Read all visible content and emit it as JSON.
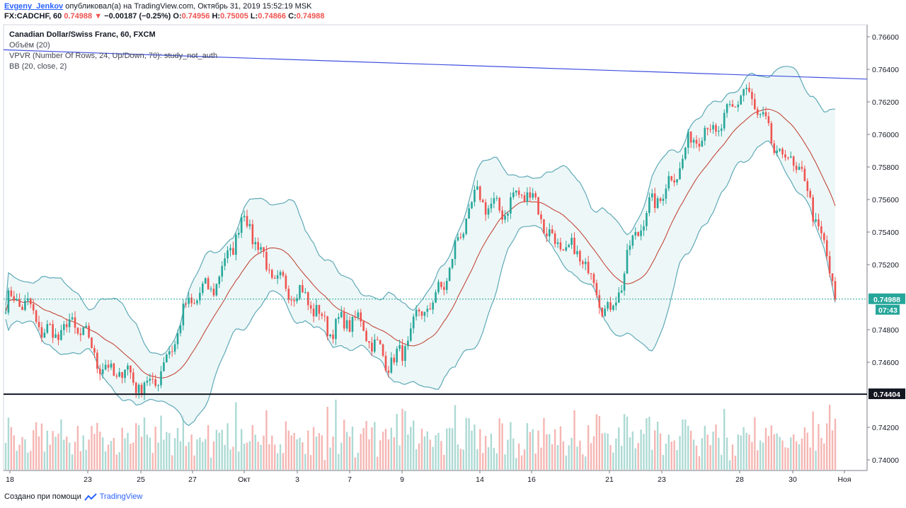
{
  "header": {
    "author": "Evgeny_Jenkov",
    "published_text": "опубликовал(а) на TradingView.com, Октябрь 31, 2019 15:52:19 MSK",
    "symbol_line_label": "FX:CADCHF, 60",
    "last": "0.74988",
    "change": "−0.00187 (−0.25%)",
    "ohlc": {
      "o_label": "O:",
      "o": "0.74956",
      "h_label": "H:",
      "h": "0.75005",
      "l_label": "L:",
      "l": "0.74866",
      "c_label": "C:",
      "c": "0.74988"
    }
  },
  "legend": {
    "title": "Canadian Dollar/Swiss Franc, 60, FXCM",
    "volume": "Объём (20)",
    "vpvr": "VPVR (Number Of Rows, 24, Up/Down, 70): study_not_auth",
    "bb": "BB (20, close, 2)"
  },
  "footer": {
    "created_with": "Создано при помощи",
    "brand": "TradingView"
  },
  "colors": {
    "up": "#26a69a",
    "down": "#ef5350",
    "band": "#5fa9b8",
    "basis": "#c0392b",
    "trend": "#3f51e0",
    "support": "#131722",
    "price_line": "#26a69a"
  },
  "chart_data": {
    "type": "line",
    "title": "Canadian Dollar/Swiss Franc, 60, FXCM",
    "ylim": [
      0.7392,
      0.7668
    ],
    "y_ticks": [
      "0.76600",
      "0.76400",
      "0.76200",
      "0.76000",
      "0.75800",
      "0.75600",
      "0.75400",
      "0.75200",
      "0.74800",
      "0.74600",
      "0.74200",
      "0.74000"
    ],
    "x_ticks": [
      "18",
      "23",
      "25",
      "27",
      "Окт",
      "3",
      "7",
      "9",
      "14",
      "16",
      "21",
      "23",
      "28",
      "30",
      "Ноя"
    ],
    "last_price_label": "0.74988",
    "countdown_label": "07:43",
    "support_label": "0.74404",
    "support_level": 0.74404,
    "current_price": 0.74988,
    "trendline": [
      0.7652,
      0.7634
    ],
    "series": [
      {
        "name": "CADCHF close",
        "x": [
          "18",
          "23",
          "25",
          "27",
          "Окт",
          "3",
          "7",
          "9",
          "14",
          "16",
          "21",
          "23",
          "28",
          "30",
          "Ноя"
        ],
        "values": [
          0.7495,
          0.7472,
          0.744,
          0.7493,
          0.7543,
          0.7497,
          0.7482,
          0.7462,
          0.756,
          0.7558,
          0.7495,
          0.757,
          0.7624,
          0.7584,
          0.7496
        ]
      }
    ],
    "grid": false,
    "legend_position": "top-left"
  }
}
